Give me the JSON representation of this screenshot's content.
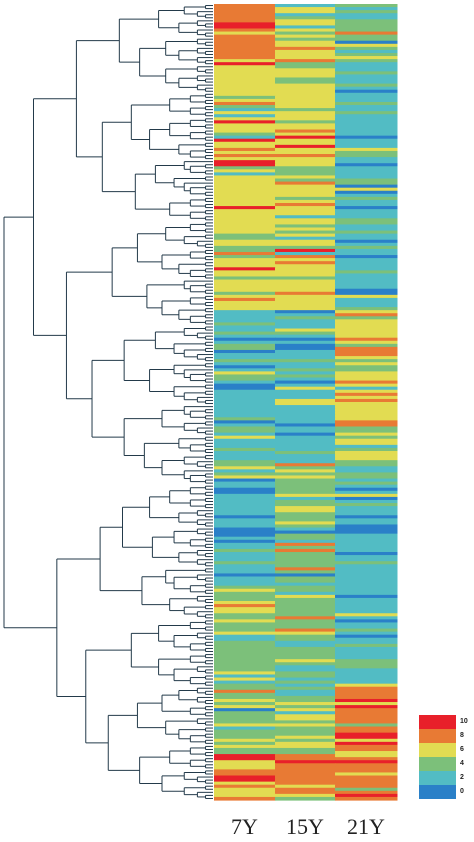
{
  "chart_data": {
    "type": "heatmap",
    "title": "",
    "columns": [
      "7Y",
      "15Y",
      "21Y"
    ],
    "row_count": 260,
    "dendrogram": "hierarchical clustering tree on left",
    "color_scale": {
      "min": 0,
      "max": 10,
      "ticks": [
        "10",
        "8",
        "6",
        "4",
        "2",
        "0"
      ],
      "colors": [
        "#e8202a",
        "#e87a34",
        "#e2dc52",
        "#7cc07a",
        "#52bcc4",
        "#2a80c8"
      ]
    },
    "clusters": [
      {
        "rows": [
          0,
          20
        ],
        "values": [
          7,
          6,
          3
        ]
      },
      {
        "rows": [
          20,
          60
        ],
        "values": [
          6,
          6,
          2
        ]
      },
      {
        "rows": [
          60,
          100
        ],
        "values": [
          5,
          6,
          1
        ]
      },
      {
        "rows": [
          100,
          150
        ],
        "values": [
          1,
          1,
          5
        ]
      },
      {
        "rows": [
          150,
          190
        ],
        "values": [
          1,
          3,
          1
        ]
      },
      {
        "rows": [
          190,
          222
        ],
        "values": [
          3,
          3,
          1
        ]
      },
      {
        "rows": [
          222,
          245
        ],
        "values": [
          4,
          4,
          7
        ]
      },
      {
        "rows": [
          245,
          260
        ],
        "values": [
          8,
          8,
          7
        ]
      }
    ]
  }
}
